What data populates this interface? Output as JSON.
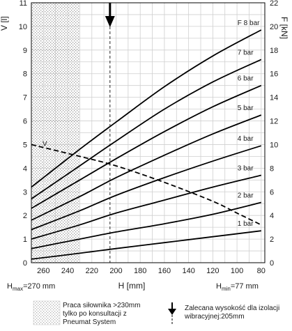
{
  "chart_data": {
    "type": "line",
    "x_axis": {
      "label": "H [mm]",
      "ticks": [
        260,
        240,
        220,
        200,
        180,
        160,
        140,
        120,
        100,
        80
      ],
      "range": [
        270,
        77
      ],
      "reversed": true
    },
    "y_left": {
      "label": "V [l]",
      "range": [
        0,
        11
      ],
      "ticks": [
        0,
        1,
        2,
        3,
        4,
        5,
        6,
        7,
        8,
        9,
        10,
        11
      ]
    },
    "y_right": {
      "label": "F [kN]",
      "range": [
        0,
        22
      ],
      "ticks": [
        0,
        2,
        4,
        6,
        8,
        10,
        12,
        14,
        16,
        18,
        20,
        22
      ]
    },
    "grid": true,
    "x_limits": {
      "hmax_prefix": "H",
      "hmax_sub": "max",
      "hmax_value": "=270 mm",
      "hmin_prefix": "H",
      "hmin_sub": "min",
      "hmin_value": "=77 mm"
    },
    "force_axis": "right",
    "series": [
      {
        "name": "1 bar",
        "x": [
          270,
          230,
          200,
          160,
          120,
          80
        ],
        "y": [
          0.3,
          0.8,
          1.2,
          1.7,
          2.2,
          2.7
        ]
      },
      {
        "name": "2 bar",
        "x": [
          270,
          230,
          200,
          160,
          120,
          80
        ],
        "y": [
          1.2,
          2.0,
          2.6,
          3.3,
          4.1,
          5.1
        ]
      },
      {
        "name": "3 bar",
        "x": [
          270,
          230,
          200,
          160,
          120,
          80
        ],
        "y": [
          2.0,
          3.2,
          4.2,
          5.3,
          6.4,
          7.4
        ]
      },
      {
        "name": "4 bar",
        "x": [
          270,
          230,
          200,
          160,
          120,
          80
        ],
        "y": [
          2.8,
          4.4,
          5.7,
          7.2,
          8.6,
          9.9
        ]
      },
      {
        "name": "5 bar",
        "x": [
          270,
          230,
          200,
          160,
          120,
          80
        ],
        "y": [
          3.6,
          5.6,
          7.2,
          9.1,
          10.9,
          12.5
        ]
      },
      {
        "name": "6 bar",
        "x": [
          270,
          230,
          200,
          160,
          120,
          80
        ],
        "y": [
          4.6,
          7.0,
          8.8,
          11.1,
          13.2,
          15.0
        ]
      },
      {
        "name": "7 bar",
        "x": [
          270,
          230,
          200,
          160,
          120,
          80
        ],
        "y": [
          5.4,
          8.2,
          10.3,
          13.0,
          15.3,
          17.2
        ]
      },
      {
        "name": "F 8 bar",
        "x": [
          270,
          230,
          200,
          160,
          120,
          80
        ],
        "y": [
          6.4,
          9.6,
          11.9,
          14.9,
          17.5,
          19.7
        ]
      }
    ],
    "volume_series": {
      "name": "V",
      "axis": "left",
      "dashed": true,
      "x": [
        270,
        230,
        200,
        160,
        120,
        100,
        80
      ],
      "y": [
        5.0,
        4.5,
        4.1,
        3.4,
        2.6,
        2.1,
        1.6
      ]
    },
    "hatched_region": {
      "x": [
        270,
        230
      ]
    },
    "recommended_height": {
      "x": 205
    },
    "legend": {
      "hatch_text": [
        "Praca siłownika >230mm",
        "tylko po konsultacji z",
        "Pneumat System"
      ],
      "arrow_text": [
        "Zalecana wysokość dla izolacji",
        "wibracyjnej:205mm"
      ]
    }
  }
}
